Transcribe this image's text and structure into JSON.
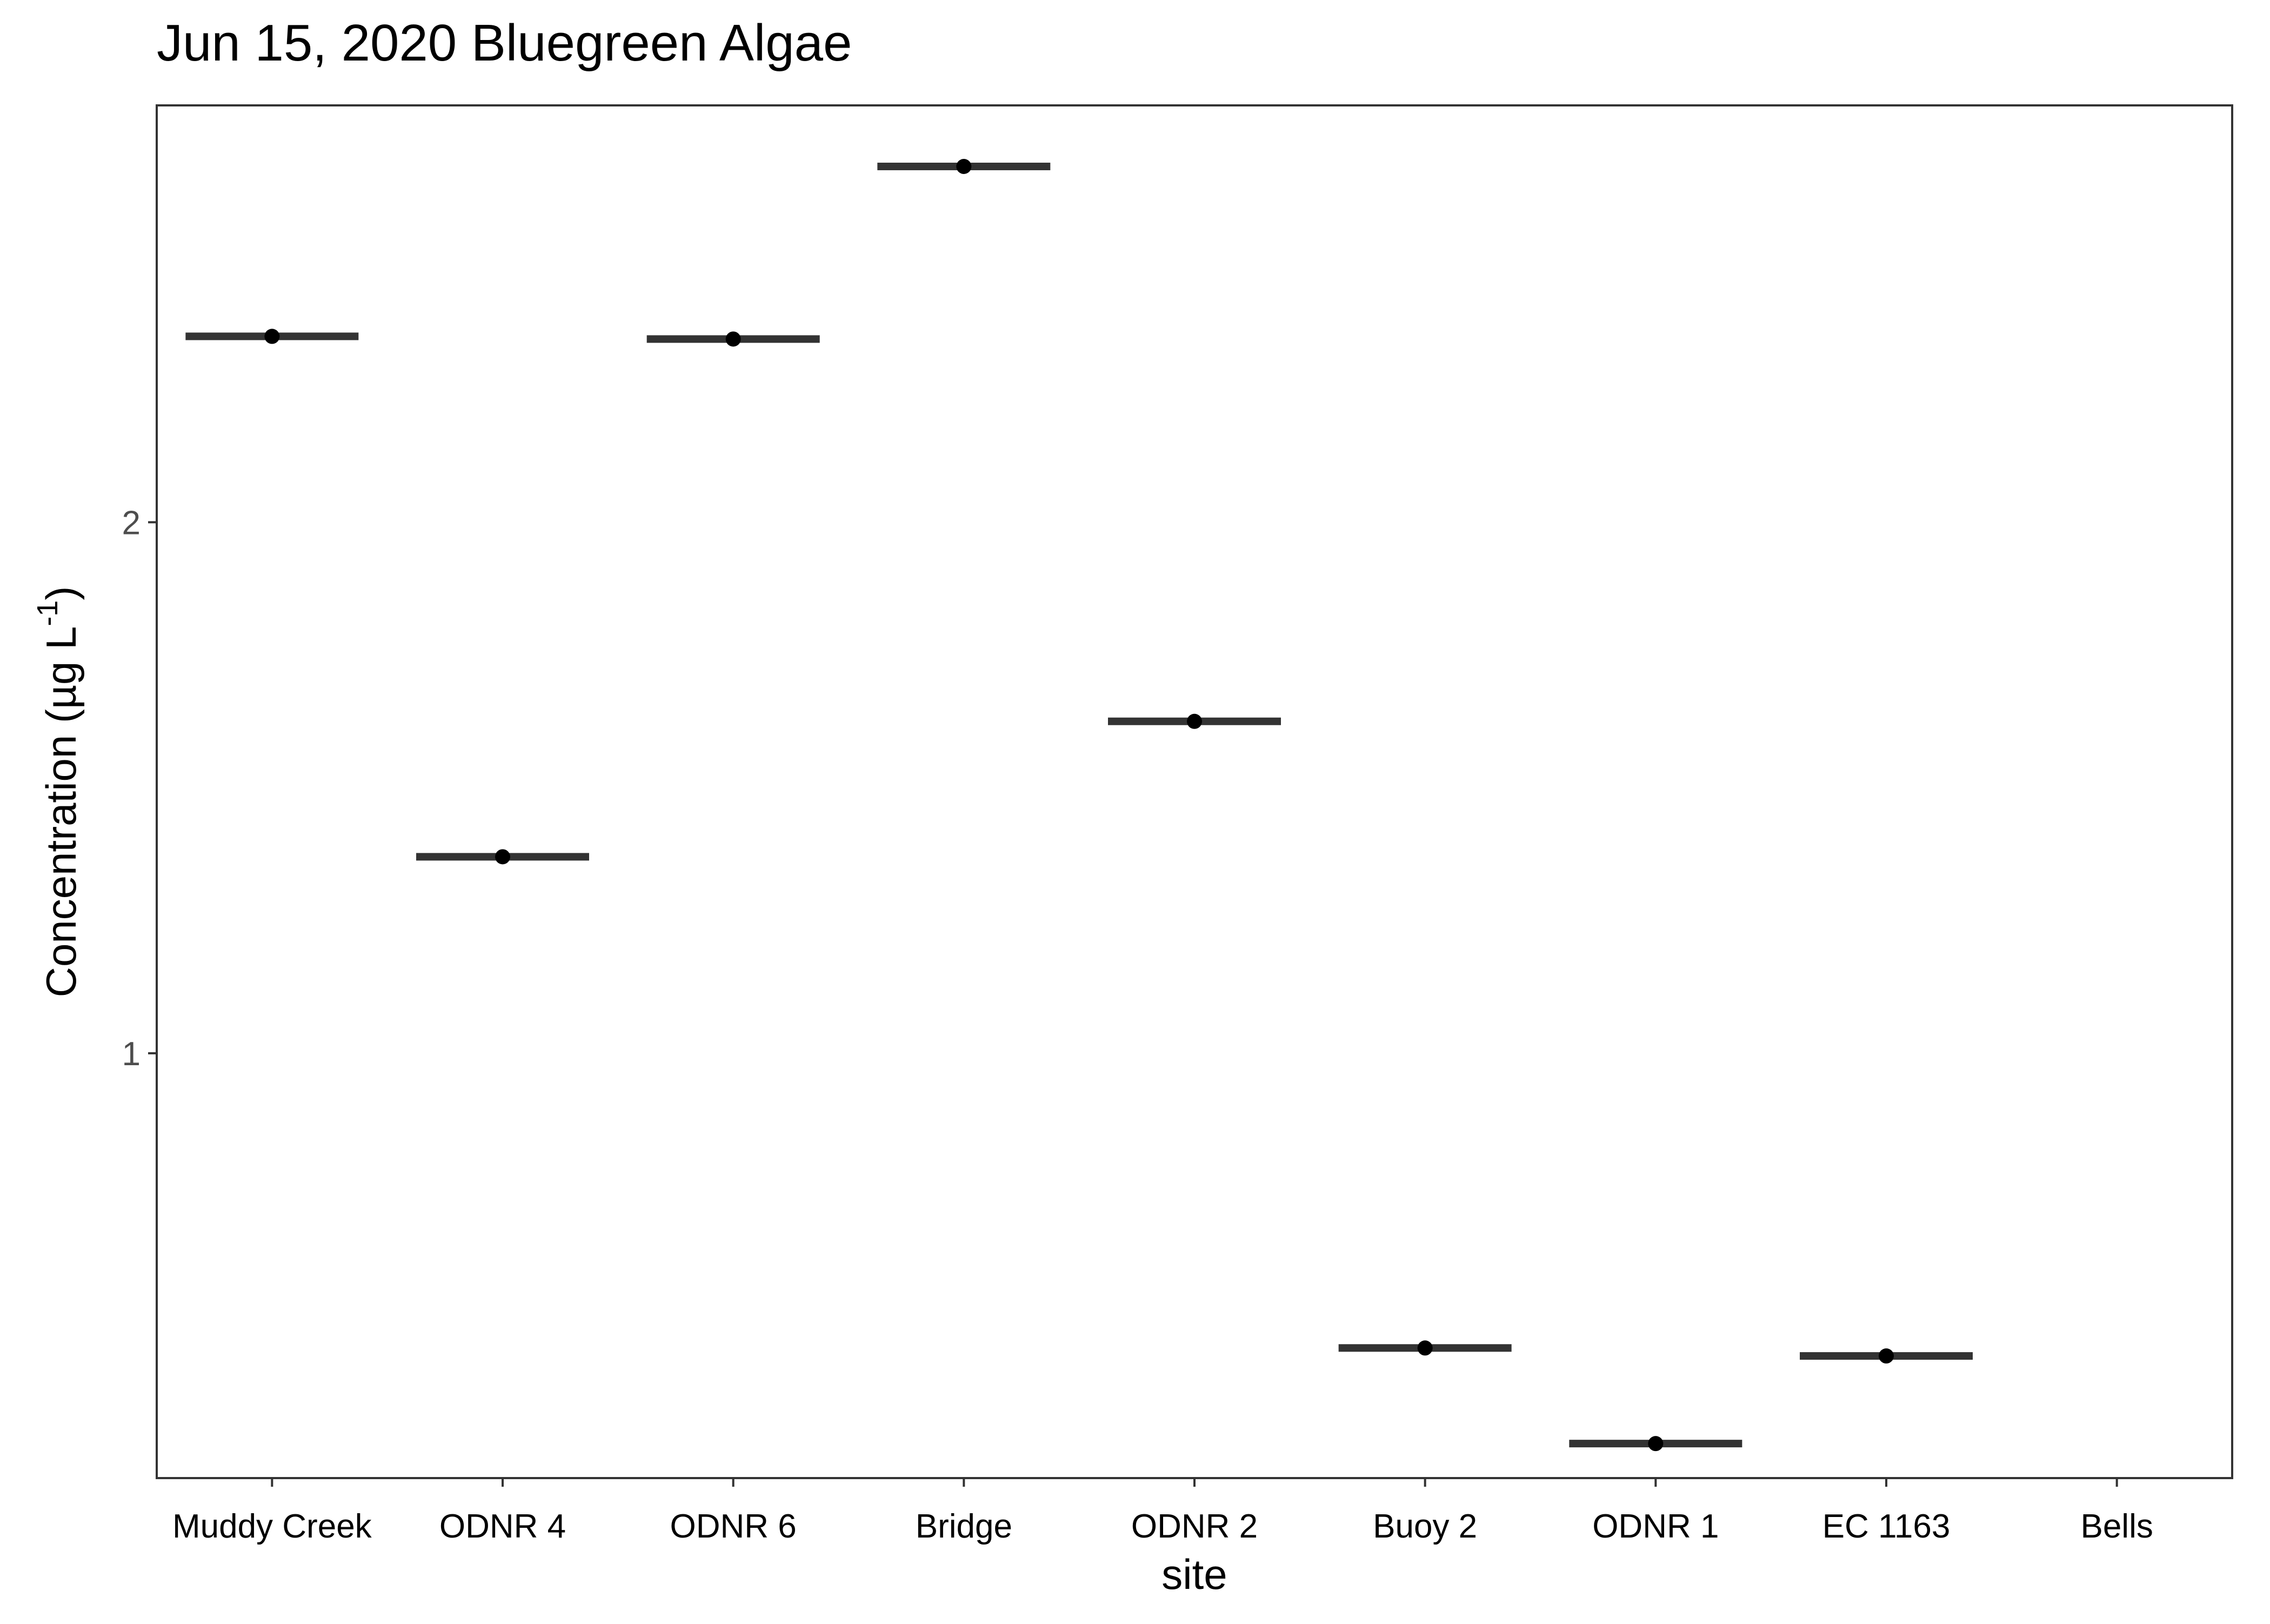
{
  "chart_data": {
    "type": "crossbar",
    "title": "Jun 15, 2020 Bluegreen Algae",
    "xlabel": "site",
    "ylabel_prefix": "Concentration (µg L",
    "ylabel_superscript": "-1",
    "ylabel_suffix": ")",
    "categories": [
      "Muddy Creek",
      "ODNR 4",
      "ODNR 6",
      "Bridge",
      "ODNR 2",
      "Buoy 2",
      "ODNR 1",
      "EC 1163",
      "Bells"
    ],
    "values": [
      2.35,
      1.37,
      2.345,
      2.67,
      1.625,
      0.445,
      0.265,
      0.43,
      null
    ],
    "yticks": [
      1,
      2
    ],
    "ylim": [
      0.2,
      2.785
    ],
    "grid": false,
    "colors": {
      "bar": "#333333",
      "point": "#000000",
      "frame": "#333333",
      "tick_label": "#4d4d4d",
      "text": "#000000"
    }
  }
}
